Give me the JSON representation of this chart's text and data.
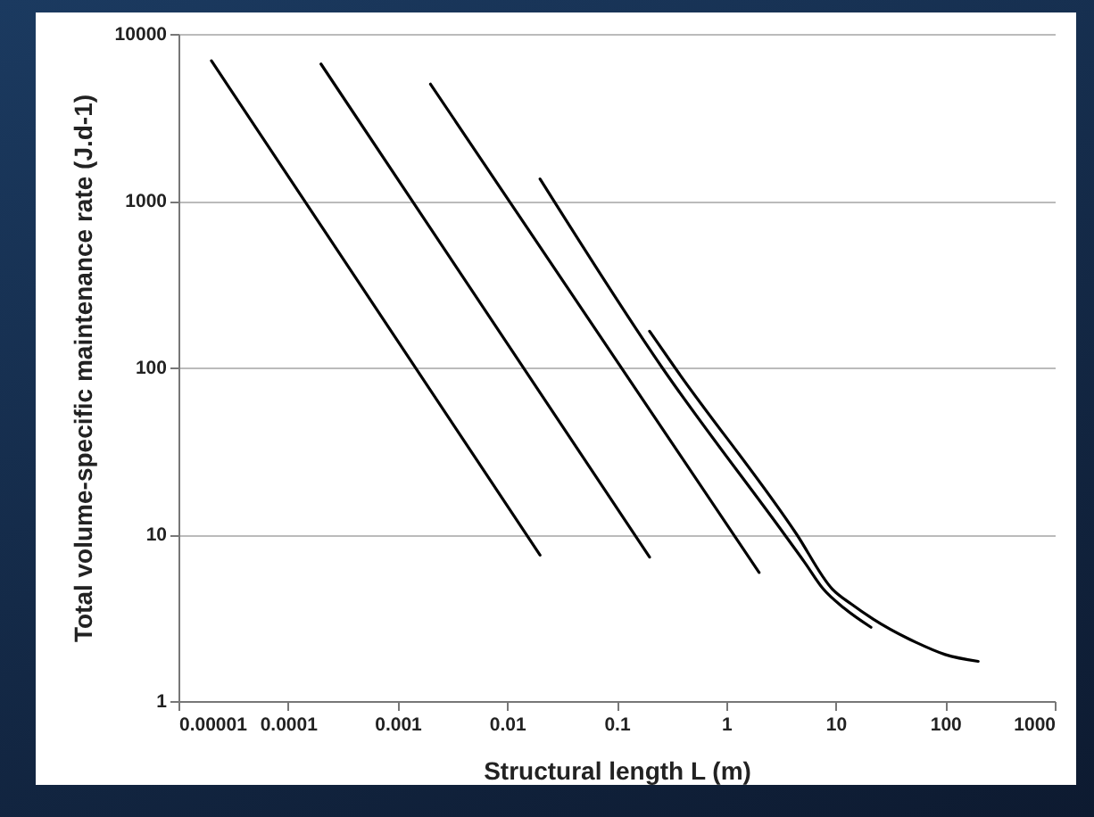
{
  "chart_data": {
    "type": "line",
    "xlabel": "Structural length L (m)",
    "ylabel": "Total volume-specific maintenance rate (J.d-1)",
    "log": "xy",
    "grid": "y",
    "marker": "none",
    "line_style": "solid",
    "xlim": [
      1e-05,
      1000
    ],
    "xticks": [
      {
        "value": 1e-05,
        "label": "0.00001"
      },
      0.0001,
      0.001,
      0.01,
      0.1,
      1,
      10,
      100,
      1000
    ],
    "ylim": [
      1,
      10000
    ],
    "yticks": [
      1,
      10,
      100,
      1000,
      10000
    ],
    "series": [
      {
        "color": "#000000",
        "x": [
          2e-05,
          0.02
        ],
        "values": [
          6900,
          7.5
        ]
      },
      {
        "color": "#000000",
        "x": [
          0.0002,
          0.2
        ],
        "values": [
          6600,
          7.3
        ]
      },
      {
        "color": "#000000",
        "x": [
          0.002,
          2
        ],
        "values": [
          5000,
          5.9
        ]
      },
      {
        "color": "#000000",
        "x": [
          0.02,
          0.26,
          3.4,
          5.2,
          7.7,
          12,
          21
        ],
        "values": [
          1350,
          100,
          10,
          6.8,
          4.7,
          3.6,
          2.77
        ]
      },
      {
        "color": "#000000",
        "x": [
          0.2,
          0.34,
          4.4,
          9.3,
          14,
          22,
          54,
          100,
          200
        ],
        "values": [
          165,
          100,
          10,
          4.7,
          3.8,
          3.1,
          2.25,
          1.9,
          1.73
        ]
      }
    ]
  }
}
